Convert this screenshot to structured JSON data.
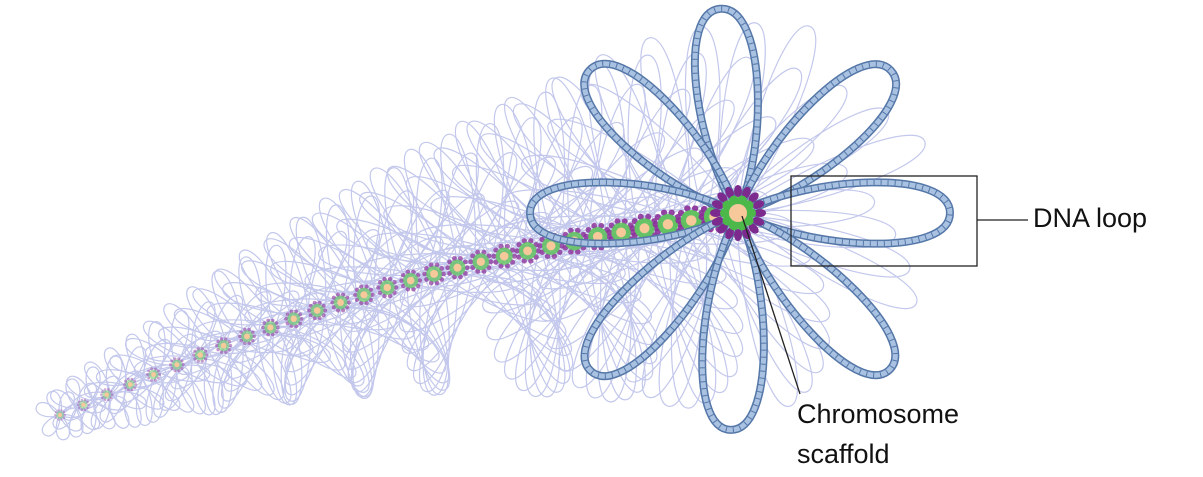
{
  "labels": {
    "dna_loop": "DNA loop",
    "chromosome_scaffold": [
      "Chromosome",
      "scaffold"
    ]
  }
}
